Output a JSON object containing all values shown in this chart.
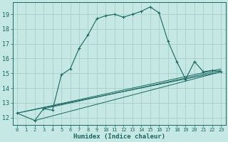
{
  "xlabel": "Humidex (Indice chaleur)",
  "bg_color": "#c5e8e5",
  "grid_color": "#a8cec8",
  "line_color": "#1a6660",
  "xlim": [
    -0.5,
    23.5
  ],
  "ylim": [
    11.5,
    19.8
  ],
  "yticks": [
    12,
    13,
    14,
    15,
    16,
    17,
    18,
    19
  ],
  "xticks": [
    0,
    1,
    2,
    3,
    4,
    5,
    6,
    7,
    8,
    9,
    10,
    11,
    12,
    13,
    14,
    15,
    16,
    17,
    18,
    19,
    20,
    21,
    22,
    23
  ],
  "main_x": [
    0,
    2,
    3,
    4,
    5,
    6,
    7,
    8,
    9,
    10,
    11,
    12,
    13,
    14,
    15,
    16,
    17,
    18,
    19,
    20,
    21,
    22,
    23
  ],
  "main_y": [
    12.3,
    11.8,
    12.6,
    12.5,
    14.9,
    15.3,
    16.7,
    17.6,
    18.7,
    18.9,
    19.0,
    18.8,
    19.0,
    19.2,
    19.5,
    19.1,
    17.2,
    15.8,
    14.6,
    15.8,
    15.1,
    15.2,
    15.1
  ],
  "ref_lines": [
    {
      "x0": 0,
      "y0": 12.3,
      "x1": 23,
      "y1": 15.1
    },
    {
      "x0": 0,
      "y0": 12.3,
      "x1": 23,
      "y1": 15.3
    },
    {
      "x0": 2,
      "y0": 11.8,
      "x1": 23,
      "y1": 15.1
    },
    {
      "x0": 3,
      "y0": 12.6,
      "x1": 23,
      "y1": 15.2
    }
  ]
}
